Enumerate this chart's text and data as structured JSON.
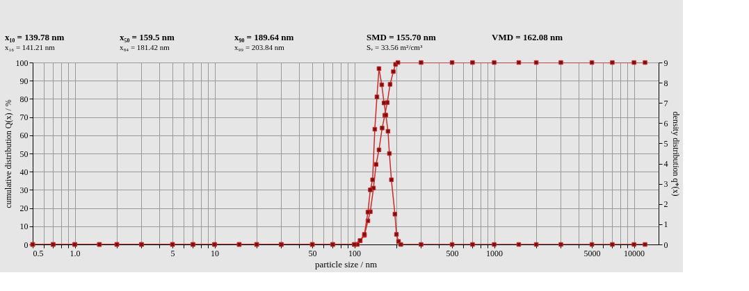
{
  "chart_data": {
    "type": "line",
    "xlabel": "particle size / nm",
    "ylabel": "cumulative distribution Q(x) / %",
    "y2label": "density distribution q*(x)",
    "annotations": [
      "x₁₀ = 139.78 nm",
      "x₅₀ = 159.5 nm",
      "x₉₀ = 189.64 nm",
      "SMD = 155.70 nm",
      "VMD = 162.08 nm",
      "x₁₆ = 141.21 nm",
      "x₈₄ = 181.42 nm",
      "x₉₉ = 203.84 nm",
      "Sᵥ = 33.56 m²/cm³"
    ],
    "log": "x",
    "grid": true,
    "marker": "square",
    "line_style": "solid",
    "xlim": [
      0.5,
      15000
    ],
    "xticks": [
      {
        "value": 0.5,
        "label": "0.5"
      },
      {
        "value": 0.6,
        "label": null
      },
      {
        "value": 0.7,
        "label": null
      },
      {
        "value": 0.8,
        "label": null
      },
      {
        "value": 0.9,
        "label": null
      },
      {
        "value": 1,
        "label": "1.0"
      },
      {
        "value": 2,
        "label": null
      },
      {
        "value": 3,
        "label": null
      },
      {
        "value": 4,
        "label": null
      },
      5,
      {
        "value": 6,
        "label": null
      },
      {
        "value": 7,
        "label": null
      },
      {
        "value": 8,
        "label": null
      },
      {
        "value": 9,
        "label": null
      },
      10,
      {
        "value": 20,
        "label": null
      },
      {
        "value": 30,
        "label": null
      },
      {
        "value": 40,
        "label": null
      },
      50,
      {
        "value": 60,
        "label": null
      },
      {
        "value": 70,
        "label": null
      },
      {
        "value": 80,
        "label": null
      },
      {
        "value": 90,
        "label": null
      },
      100,
      {
        "value": 200,
        "label": null
      },
      {
        "value": 300,
        "label": null
      },
      {
        "value": 400,
        "label": null
      },
      500,
      {
        "value": 600,
        "label": null
      },
      {
        "value": 700,
        "label": null
      },
      {
        "value": 800,
        "label": null
      },
      {
        "value": 900,
        "label": null
      },
      1000,
      {
        "value": 2000,
        "label": null
      },
      {
        "value": 3000,
        "label": null
      },
      {
        "value": 4000,
        "label": null
      },
      5000,
      {
        "value": 6000,
        "label": null
      },
      {
        "value": 7000,
        "label": null
      },
      {
        "value": 8000,
        "label": null
      },
      {
        "value": 9000,
        "label": null
      },
      10000
    ],
    "ylim": [
      0,
      100
    ],
    "yticks": [
      0,
      10,
      20,
      30,
      40,
      50,
      60,
      70,
      80,
      90,
      100
    ],
    "y2lim": [
      0,
      9
    ],
    "y2ticks": [
      0,
      1,
      2,
      3,
      4,
      5,
      6,
      7,
      8,
      9
    ],
    "series": [
      {
        "color": "#cc2a2a",
        "x": [
          0.5,
          0.7,
          1,
          1.5,
          2,
          3,
          5,
          7,
          10,
          15,
          20,
          30,
          50,
          70,
          100,
          105,
          110,
          118,
          125,
          130,
          137,
          143,
          150,
          158,
          165,
          172,
          180,
          190,
          197,
          205,
          300,
          500,
          700,
          1000,
          1500,
          2000,
          3000,
          5000,
          7000,
          10000,
          12000
        ],
        "values": [
          0,
          0,
          0,
          0,
          0,
          0,
          0,
          0,
          0,
          0,
          0,
          0,
          0,
          0,
          0,
          0,
          2,
          5,
          13,
          18,
          31,
          44,
          52,
          64,
          71,
          78,
          88,
          95,
          99,
          100,
          100,
          100,
          100,
          100,
          100,
          100,
          100,
          100,
          100,
          100,
          100
        ]
      },
      {
        "color": "#cc2a2a",
        "axis": "y2",
        "x": [
          0.5,
          0.7,
          1,
          1.5,
          2,
          3,
          5,
          7,
          10,
          15,
          20,
          30,
          50,
          70,
          100,
          110,
          118,
          125,
          130,
          135,
          140,
          145,
          150,
          157,
          163,
          168,
          174,
          178,
          184,
          195,
          200,
          207,
          215,
          300,
          500,
          700,
          1000,
          1500,
          2000,
          3000,
          5000,
          7000,
          10000,
          12000
        ],
        "values": [
          0,
          0,
          0,
          0,
          0,
          0,
          0,
          0,
          0,
          0,
          0,
          0,
          0,
          0,
          0,
          0.2,
          0.5,
          1.6,
          2.7,
          3.2,
          5.7,
          7.3,
          8.7,
          7.9,
          7.0,
          6.4,
          5.6,
          4.5,
          3.2,
          1.5,
          0.5,
          0.15,
          0,
          0,
          0,
          0,
          0,
          0,
          0,
          0,
          0,
          0,
          0,
          0
        ]
      }
    ]
  }
}
